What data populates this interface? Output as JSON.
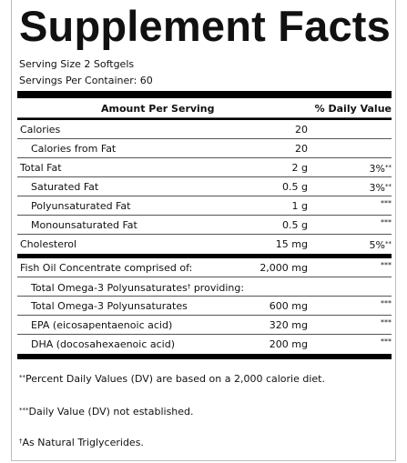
{
  "title": "Supplement Facts",
  "serving_size": "Serving Size 2 Softgels",
  "servings_per_container": "Servings Per Container: 60",
  "header": {
    "amount": "Amount Per Serving",
    "dv": "% Daily Value"
  },
  "rows": [
    {
      "label": "Calories",
      "amount": "20",
      "dv": "",
      "dv_mark": ""
    },
    {
      "label": "Calories from Fat",
      "amount": "20",
      "dv": "",
      "dv_mark": ""
    },
    {
      "label": "Total Fat",
      "amount": "2 g",
      "dv": "3%",
      "dv_mark": "**"
    },
    {
      "label": "Saturated Fat",
      "amount": "0.5 g",
      "dv": "3%",
      "dv_mark": "**"
    },
    {
      "label": "Polyunsaturated Fat",
      "amount": "1 g",
      "dv": "",
      "dv_mark": "***"
    },
    {
      "label": "Monounsaturated Fat",
      "amount": "0.5 g",
      "dv": "",
      "dv_mark": "***"
    },
    {
      "label": "Cholesterol",
      "amount": "15 mg",
      "dv": "5%",
      "dv_mark": "**"
    },
    {
      "label": "Fish Oil Concentrate comprised of:",
      "amount": "2,000 mg",
      "dv": "",
      "dv_mark": "***"
    },
    {
      "label": "Total Omega-3 Polyunsaturates",
      "label_mark": "†",
      "label_suffix": " providing:",
      "amount": "",
      "dv": "",
      "dv_mark": ""
    },
    {
      "label": "Total Omega-3 Polyunsaturates",
      "amount": "600 mg",
      "dv": "",
      "dv_mark": "***"
    },
    {
      "label": "EPA (eicosapentaenoic acid)",
      "amount": "320 mg",
      "dv": "",
      "dv_mark": "***"
    },
    {
      "label": "DHA (docosahexaenoic acid)",
      "amount": "200 mg",
      "dv": "",
      "dv_mark": "***"
    }
  ],
  "footnotes": {
    "dv_mark": "**",
    "dv_text": "Percent Daily Values (DV) are based on a 2,000 calorie diet.",
    "nodv_mark": "***",
    "nodv_text": "Daily Value (DV) not established.",
    "tg_mark": "†",
    "tg_text": "As Natural Triglycerides."
  }
}
